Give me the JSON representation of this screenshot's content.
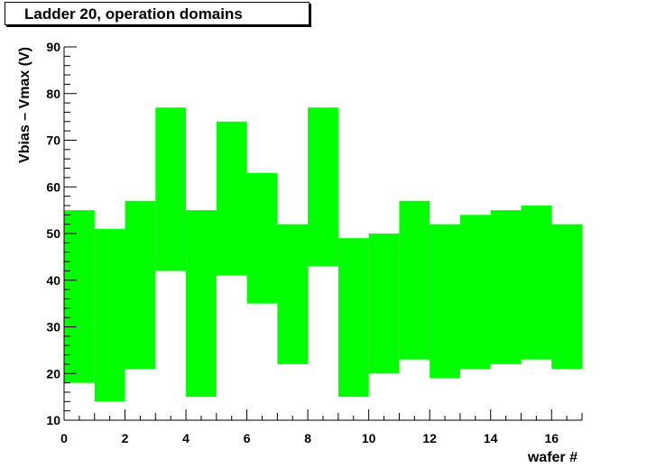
{
  "chart_data": {
    "type": "bar",
    "title": "Ladder 20, operation domains",
    "xlabel": "wafer #",
    "ylabel": "Vbias – Vmax (V)",
    "xlim": [
      0,
      17
    ],
    "ylim": [
      10,
      90
    ],
    "x_ticks": [
      "0",
      "2",
      "4",
      "6",
      "8",
      "10",
      "12",
      "14",
      "16"
    ],
    "y_ticks": [
      "10",
      "20",
      "30",
      "40",
      "50",
      "60",
      "70",
      "80",
      "90"
    ],
    "grid": false,
    "fill_color": "#00ff00",
    "bins": [
      {
        "x0": 0,
        "x1": 1,
        "low": 18,
        "high": 55
      },
      {
        "x0": 1,
        "x1": 2,
        "low": 14,
        "high": 51
      },
      {
        "x0": 2,
        "x1": 3,
        "low": 21,
        "high": 57
      },
      {
        "x0": 3,
        "x1": 4,
        "low": 42,
        "high": 77
      },
      {
        "x0": 4,
        "x1": 5,
        "low": 15,
        "high": 55
      },
      {
        "x0": 5,
        "x1": 6,
        "low": 41,
        "high": 74
      },
      {
        "x0": 6,
        "x1": 7,
        "low": 35,
        "high": 63
      },
      {
        "x0": 7,
        "x1": 8,
        "low": 22,
        "high": 52
      },
      {
        "x0": 8,
        "x1": 9,
        "low": 43,
        "high": 77
      },
      {
        "x0": 9,
        "x1": 10,
        "low": 15,
        "high": 49
      },
      {
        "x0": 10,
        "x1": 11,
        "low": 20,
        "high": 50
      },
      {
        "x0": 11,
        "x1": 12,
        "low": 23,
        "high": 57
      },
      {
        "x0": 12,
        "x1": 13,
        "low": 19,
        "high": 52
      },
      {
        "x0": 13,
        "x1": 14,
        "low": 21,
        "high": 54
      },
      {
        "x0": 14,
        "x1": 15,
        "low": 22,
        "high": 55
      },
      {
        "x0": 15,
        "x1": 16,
        "low": 23,
        "high": 56
      },
      {
        "x0": 16,
        "x1": 17,
        "low": 21,
        "high": 52
      }
    ]
  }
}
